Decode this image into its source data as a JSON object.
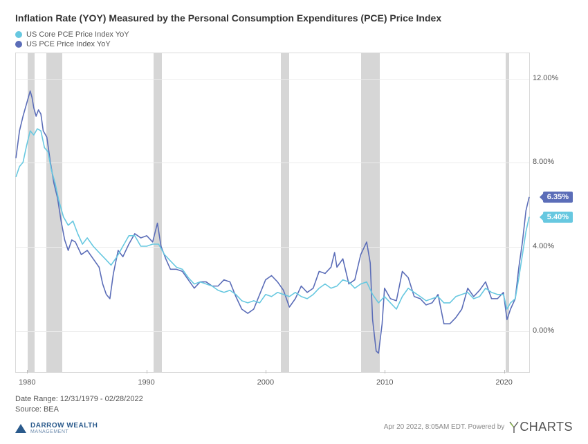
{
  "title": "Inflation Rate (YOY) Measured by the Personal Consumption Expenditures (PCE) Price Index",
  "legend": {
    "items": [
      {
        "label": "US Core PCE Price Index YoY",
        "color": "#67c8e0"
      },
      {
        "label": "US PCE Price Index YoY",
        "color": "#5b6db8"
      }
    ]
  },
  "chart": {
    "type": "line",
    "x_domain": [
      1979.0,
      2022.17
    ],
    "y_domain": [
      -2.0,
      13.2
    ],
    "y_ticks": [
      0.0,
      4.0,
      8.0,
      12.0
    ],
    "y_tick_labels": [
      "0.00%",
      "4.00%",
      "8.00%",
      "12.00%"
    ],
    "x_ticks": [
      1980,
      1990,
      2000,
      2010,
      2020
    ],
    "x_tick_labels": [
      "1980",
      "1990",
      "2000",
      "2010",
      "2020"
    ],
    "grid_color": "#ececec",
    "border_color": "#d9d9d9",
    "background_color": "#ffffff",
    "recession_color": "#d6d6d6",
    "recessions": [
      [
        1980.0,
        1980.55
      ],
      [
        1981.55,
        1982.9
      ],
      [
        1990.55,
        1991.25
      ],
      [
        2001.2,
        2001.9
      ],
      [
        2007.95,
        2009.5
      ],
      [
        2020.1,
        2020.35
      ]
    ],
    "line_width": 1.6,
    "series": [
      {
        "name": "US PCE Price Index YoY",
        "color": "#5b6db8",
        "end_label": "6.35%",
        "end_label_bg": "#5b6db8",
        "points": [
          [
            1979.0,
            8.2
          ],
          [
            1979.3,
            9.5
          ],
          [
            1979.6,
            10.2
          ],
          [
            1979.9,
            10.8
          ],
          [
            1980.2,
            11.4
          ],
          [
            1980.35,
            11.1
          ],
          [
            1980.5,
            10.6
          ],
          [
            1980.7,
            10.2
          ],
          [
            1980.9,
            10.5
          ],
          [
            1981.1,
            10.3
          ],
          [
            1981.3,
            9.5
          ],
          [
            1981.6,
            9.2
          ],
          [
            1981.9,
            8.0
          ],
          [
            1982.2,
            7.0
          ],
          [
            1982.5,
            6.3
          ],
          [
            1982.8,
            5.2
          ],
          [
            1983.1,
            4.3
          ],
          [
            1983.4,
            3.8
          ],
          [
            1983.7,
            4.3
          ],
          [
            1984.0,
            4.2
          ],
          [
            1984.5,
            3.6
          ],
          [
            1985.0,
            3.8
          ],
          [
            1985.5,
            3.4
          ],
          [
            1986.0,
            3.0
          ],
          [
            1986.3,
            2.2
          ],
          [
            1986.6,
            1.7
          ],
          [
            1986.9,
            1.5
          ],
          [
            1987.2,
            2.7
          ],
          [
            1987.6,
            3.8
          ],
          [
            1988.0,
            3.5
          ],
          [
            1988.5,
            4.1
          ],
          [
            1989.0,
            4.6
          ],
          [
            1989.5,
            4.4
          ],
          [
            1990.0,
            4.5
          ],
          [
            1990.5,
            4.2
          ],
          [
            1990.9,
            5.1
          ],
          [
            1991.2,
            4.0
          ],
          [
            1991.6,
            3.4
          ],
          [
            1992.0,
            2.9
          ],
          [
            1992.5,
            2.9
          ],
          [
            1993.0,
            2.8
          ],
          [
            1993.5,
            2.4
          ],
          [
            1994.0,
            2.0
          ],
          [
            1994.5,
            2.3
          ],
          [
            1995.0,
            2.3
          ],
          [
            1995.5,
            2.1
          ],
          [
            1996.0,
            2.1
          ],
          [
            1996.5,
            2.4
          ],
          [
            1997.0,
            2.3
          ],
          [
            1997.5,
            1.6
          ],
          [
            1998.0,
            1.0
          ],
          [
            1998.5,
            0.8
          ],
          [
            1999.0,
            1.0
          ],
          [
            1999.5,
            1.7
          ],
          [
            2000.0,
            2.4
          ],
          [
            2000.5,
            2.6
          ],
          [
            2001.0,
            2.3
          ],
          [
            2001.5,
            1.9
          ],
          [
            2002.0,
            1.1
          ],
          [
            2002.5,
            1.5
          ],
          [
            2003.0,
            2.1
          ],
          [
            2003.5,
            1.8
          ],
          [
            2004.0,
            2.0
          ],
          [
            2004.5,
            2.8
          ],
          [
            2005.0,
            2.7
          ],
          [
            2005.5,
            3.0
          ],
          [
            2005.8,
            3.7
          ],
          [
            2006.0,
            3.0
          ],
          [
            2006.5,
            3.4
          ],
          [
            2007.0,
            2.2
          ],
          [
            2007.5,
            2.4
          ],
          [
            2008.0,
            3.6
          ],
          [
            2008.5,
            4.2
          ],
          [
            2008.8,
            3.2
          ],
          [
            2009.0,
            0.5
          ],
          [
            2009.3,
            -1.0
          ],
          [
            2009.5,
            -1.1
          ],
          [
            2009.8,
            0.3
          ],
          [
            2010.0,
            2.0
          ],
          [
            2010.5,
            1.5
          ],
          [
            2011.0,
            1.4
          ],
          [
            2011.5,
            2.8
          ],
          [
            2012.0,
            2.5
          ],
          [
            2012.5,
            1.6
          ],
          [
            2013.0,
            1.5
          ],
          [
            2013.5,
            1.2
          ],
          [
            2014.0,
            1.3
          ],
          [
            2014.5,
            1.7
          ],
          [
            2015.0,
            0.3
          ],
          [
            2015.5,
            0.3
          ],
          [
            2016.0,
            0.6
          ],
          [
            2016.5,
            1.0
          ],
          [
            2017.0,
            2.0
          ],
          [
            2017.5,
            1.6
          ],
          [
            2018.0,
            1.9
          ],
          [
            2018.5,
            2.3
          ],
          [
            2019.0,
            1.5
          ],
          [
            2019.5,
            1.5
          ],
          [
            2020.0,
            1.8
          ],
          [
            2020.3,
            0.5
          ],
          [
            2020.6,
            1.0
          ],
          [
            2021.0,
            1.5
          ],
          [
            2021.3,
            3.0
          ],
          [
            2021.6,
            4.2
          ],
          [
            2021.9,
            5.7
          ],
          [
            2022.17,
            6.35
          ]
        ]
      },
      {
        "name": "US Core PCE Price Index YoY",
        "color": "#67c8e0",
        "end_label": "5.40%",
        "end_label_bg": "#67c8e0",
        "points": [
          [
            1979.0,
            7.3
          ],
          [
            1979.3,
            7.8
          ],
          [
            1979.6,
            8.0
          ],
          [
            1979.9,
            8.8
          ],
          [
            1980.2,
            9.5
          ],
          [
            1980.5,
            9.3
          ],
          [
            1980.8,
            9.6
          ],
          [
            1981.1,
            9.5
          ],
          [
            1981.4,
            8.7
          ],
          [
            1981.7,
            8.5
          ],
          [
            1982.0,
            7.6
          ],
          [
            1982.3,
            7.0
          ],
          [
            1982.6,
            6.2
          ],
          [
            1983.0,
            5.4
          ],
          [
            1983.4,
            5.0
          ],
          [
            1983.8,
            5.2
          ],
          [
            1984.2,
            4.6
          ],
          [
            1984.6,
            4.1
          ],
          [
            1985.0,
            4.4
          ],
          [
            1985.5,
            4.0
          ],
          [
            1986.0,
            3.7
          ],
          [
            1986.5,
            3.4
          ],
          [
            1987.0,
            3.1
          ],
          [
            1987.5,
            3.5
          ],
          [
            1988.0,
            4.0
          ],
          [
            1988.5,
            4.5
          ],
          [
            1989.0,
            4.5
          ],
          [
            1989.5,
            4.0
          ],
          [
            1990.0,
            4.0
          ],
          [
            1990.5,
            4.1
          ],
          [
            1991.0,
            4.1
          ],
          [
            1991.5,
            3.6
          ],
          [
            1992.0,
            3.3
          ],
          [
            1992.5,
            3.0
          ],
          [
            1993.0,
            2.9
          ],
          [
            1993.5,
            2.5
          ],
          [
            1994.0,
            2.2
          ],
          [
            1994.5,
            2.3
          ],
          [
            1995.0,
            2.2
          ],
          [
            1995.5,
            2.1
          ],
          [
            1996.0,
            1.9
          ],
          [
            1996.5,
            1.8
          ],
          [
            1997.0,
            1.9
          ],
          [
            1997.5,
            1.7
          ],
          [
            1998.0,
            1.4
          ],
          [
            1998.5,
            1.3
          ],
          [
            1999.0,
            1.4
          ],
          [
            1999.5,
            1.3
          ],
          [
            2000.0,
            1.7
          ],
          [
            2000.5,
            1.6
          ],
          [
            2001.0,
            1.8
          ],
          [
            2001.5,
            1.7
          ],
          [
            2002.0,
            1.6
          ],
          [
            2002.5,
            1.8
          ],
          [
            2003.0,
            1.6
          ],
          [
            2003.5,
            1.5
          ],
          [
            2004.0,
            1.7
          ],
          [
            2004.5,
            2.0
          ],
          [
            2005.0,
            2.2
          ],
          [
            2005.5,
            2.0
          ],
          [
            2006.0,
            2.1
          ],
          [
            2006.5,
            2.4
          ],
          [
            2007.0,
            2.3
          ],
          [
            2007.5,
            2.0
          ],
          [
            2008.0,
            2.2
          ],
          [
            2008.5,
            2.3
          ],
          [
            2009.0,
            1.7
          ],
          [
            2009.5,
            1.3
          ],
          [
            2010.0,
            1.6
          ],
          [
            2010.5,
            1.3
          ],
          [
            2011.0,
            1.0
          ],
          [
            2011.5,
            1.6
          ],
          [
            2012.0,
            2.0
          ],
          [
            2012.5,
            1.8
          ],
          [
            2013.0,
            1.6
          ],
          [
            2013.5,
            1.4
          ],
          [
            2014.0,
            1.5
          ],
          [
            2014.5,
            1.6
          ],
          [
            2015.0,
            1.3
          ],
          [
            2015.5,
            1.3
          ],
          [
            2016.0,
            1.6
          ],
          [
            2016.5,
            1.7
          ],
          [
            2017.0,
            1.8
          ],
          [
            2017.5,
            1.5
          ],
          [
            2018.0,
            1.6
          ],
          [
            2018.5,
            2.0
          ],
          [
            2019.0,
            1.8
          ],
          [
            2019.5,
            1.7
          ],
          [
            2020.0,
            1.7
          ],
          [
            2020.3,
            1.0
          ],
          [
            2020.6,
            1.3
          ],
          [
            2021.0,
            1.5
          ],
          [
            2021.3,
            2.5
          ],
          [
            2021.6,
            3.6
          ],
          [
            2021.9,
            4.7
          ],
          [
            2022.17,
            5.4
          ]
        ]
      }
    ]
  },
  "date_range_label": "Date Range: 12/31/1979 - 02/28/2022",
  "source_label": "Source: BEA",
  "credit_text": "Apr 20 2022, 8:05AM EDT.  Powered by",
  "left_logo": {
    "line1": "DARROW WEALTH",
    "line2": "MANAGEMENT"
  },
  "ycharts_label": "CHARTS"
}
